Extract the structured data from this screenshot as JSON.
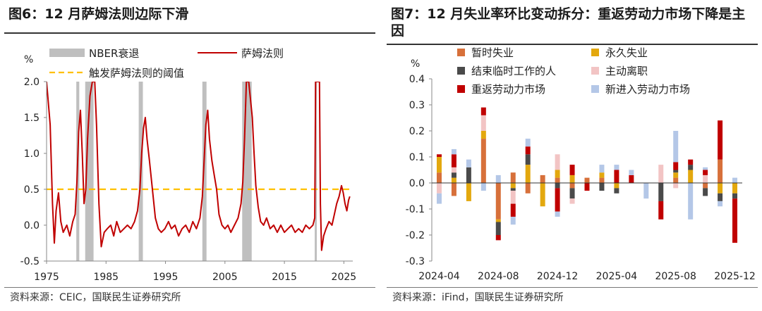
{
  "left_panel": {
    "title": "图6：12 月萨姆法则边际下滑",
    "source": "资料来源：CEIC，国联民生证券研究所"
  },
  "right_panel": {
    "title": "图7：12 月失业率环比变动拆分：重返劳动力市场下降是主因",
    "source": "资料来源：iFind，国联民生证券研究所"
  },
  "colors": {
    "sahm_line": "#C00000",
    "nber": "#BFBFBF",
    "threshold": "#FFC000",
    "temporary": "#D7703A",
    "permanent": "#E3A80E",
    "completed_temp": "#4A4A4A",
    "quits": "#F2C4C4",
    "reentrants": "#C00000",
    "new_entrants": "#B4C7E7"
  },
  "chart_data": [
    {
      "type": "line",
      "title": "12 月萨姆法则边际下滑",
      "ylabel": "%",
      "xlabel": "",
      "xlim": [
        1975,
        2026.5
      ],
      "ylim": [
        -0.5,
        2.0
      ],
      "xticks": [
        1975,
        1985,
        1995,
        2005,
        2015,
        2025
      ],
      "yticks": [
        2.0,
        1.5,
        1.0,
        0.5,
        0.0,
        -0.5
      ],
      "ytick_labels": [
        "2.0",
        "1.5",
        "1.0",
        "0.5",
        "0.0",
        "-0.5"
      ],
      "legend": [
        "NBER衰退",
        "萨姆法则",
        "触发萨姆法则的阈值"
      ],
      "threshold": 0.5,
      "recessions": [
        [
          1980.0,
          1980.5
        ],
        [
          1981.5,
          1982.9
        ],
        [
          1990.5,
          1991.2
        ],
        [
          2001.2,
          2001.9
        ],
        [
          2007.9,
          2009.5
        ],
        [
          2020.1,
          2020.3
        ]
      ],
      "series": [
        {
          "name": "萨姆法则",
          "points": [
            [
              1975.0,
              2.0
            ],
            [
              1975.6,
              1.4
            ],
            [
              1976.0,
              0.3
            ],
            [
              1976.3,
              -0.25
            ],
            [
              1976.6,
              0.2
            ],
            [
              1977.0,
              0.45
            ],
            [
              1977.4,
              0.05
            ],
            [
              1977.8,
              -0.1
            ],
            [
              1978.4,
              0.0
            ],
            [
              1978.9,
              -0.15
            ],
            [
              1979.4,
              0.05
            ],
            [
              1979.8,
              0.15
            ],
            [
              1980.1,
              0.6
            ],
            [
              1980.4,
              1.3
            ],
            [
              1980.7,
              1.6
            ],
            [
              1981.0,
              1.0
            ],
            [
              1981.3,
              0.3
            ],
            [
              1981.6,
              0.5
            ],
            [
              1981.9,
              1.2
            ],
            [
              1982.3,
              1.8
            ],
            [
              1982.7,
              2.0
            ],
            [
              1983.1,
              2.0
            ],
            [
              1983.4,
              1.4
            ],
            [
              1983.8,
              0.3
            ],
            [
              1984.2,
              -0.3
            ],
            [
              1984.7,
              -0.1
            ],
            [
              1985.2,
              -0.05
            ],
            [
              1985.8,
              0.0
            ],
            [
              1986.3,
              -0.15
            ],
            [
              1986.8,
              0.05
            ],
            [
              1987.4,
              -0.1
            ],
            [
              1988.0,
              -0.05
            ],
            [
              1988.6,
              0.0
            ],
            [
              1989.2,
              -0.05
            ],
            [
              1989.8,
              0.05
            ],
            [
              1990.3,
              0.2
            ],
            [
              1990.7,
              0.5
            ],
            [
              1991.0,
              1.0
            ],
            [
              1991.3,
              1.35
            ],
            [
              1991.6,
              1.5
            ],
            [
              1991.9,
              1.2
            ],
            [
              1992.3,
              0.9
            ],
            [
              1992.8,
              0.5
            ],
            [
              1993.3,
              0.1
            ],
            [
              1993.8,
              -0.05
            ],
            [
              1994.3,
              -0.1
            ],
            [
              1994.9,
              -0.05
            ],
            [
              1995.5,
              0.05
            ],
            [
              1996.0,
              -0.05
            ],
            [
              1996.6,
              0.0
            ],
            [
              1997.2,
              -0.15
            ],
            [
              1997.8,
              -0.05
            ],
            [
              1998.4,
              0.0
            ],
            [
              1999.0,
              -0.1
            ],
            [
              1999.6,
              0.05
            ],
            [
              2000.2,
              -0.05
            ],
            [
              2000.8,
              0.1
            ],
            [
              2001.2,
              0.4
            ],
            [
              2001.5,
              0.9
            ],
            [
              2001.8,
              1.4
            ],
            [
              2002.1,
              1.6
            ],
            [
              2002.4,
              1.2
            ],
            [
              2002.8,
              0.9
            ],
            [
              2003.2,
              0.7
            ],
            [
              2003.6,
              0.5
            ],
            [
              2004.0,
              0.15
            ],
            [
              2004.5,
              0.0
            ],
            [
              2005.0,
              -0.05
            ],
            [
              2005.5,
              0.0
            ],
            [
              2006.0,
              -0.1
            ],
            [
              2006.6,
              0.0
            ],
            [
              2007.2,
              0.1
            ],
            [
              2007.7,
              0.3
            ],
            [
              2008.0,
              0.6
            ],
            [
              2008.3,
              1.2
            ],
            [
              2008.6,
              2.0
            ],
            [
              2009.0,
              2.0
            ],
            [
              2009.6,
              1.5
            ],
            [
              2009.9,
              1.0
            ],
            [
              2010.2,
              0.55
            ],
            [
              2010.6,
              0.25
            ],
            [
              2011.0,
              0.05
            ],
            [
              2011.5,
              0.0
            ],
            [
              2012.0,
              0.1
            ],
            [
              2012.6,
              -0.05
            ],
            [
              2013.2,
              0.0
            ],
            [
              2013.8,
              -0.1
            ],
            [
              2014.4,
              0.0
            ],
            [
              2015.0,
              -0.1
            ],
            [
              2015.6,
              -0.05
            ],
            [
              2016.2,
              0.0
            ],
            [
              2016.8,
              -0.1
            ],
            [
              2017.4,
              -0.05
            ],
            [
              2018.0,
              -0.1
            ],
            [
              2018.6,
              0.0
            ],
            [
              2019.2,
              -0.05
            ],
            [
              2019.8,
              0.0
            ],
            [
              2020.1,
              0.1
            ],
            [
              2020.25,
              2.0
            ],
            [
              2020.9,
              2.0
            ],
            [
              2021.05,
              0.3
            ],
            [
              2021.25,
              -0.35
            ],
            [
              2021.6,
              -0.15
            ],
            [
              2022.0,
              -0.05
            ],
            [
              2022.5,
              0.05
            ],
            [
              2023.0,
              0.0
            ],
            [
              2023.4,
              0.15
            ],
            [
              2023.8,
              0.3
            ],
            [
              2024.2,
              0.4
            ],
            [
              2024.6,
              0.55
            ],
            [
              2024.9,
              0.45
            ],
            [
              2025.2,
              0.3
            ],
            [
              2025.5,
              0.2
            ],
            [
              2025.8,
              0.35
            ],
            [
              2026.0,
              0.4
            ]
          ]
        }
      ]
    },
    {
      "type": "bar",
      "stacked": true,
      "title": "12 月失业率环比变动拆分：重返劳动力市场下降是主因",
      "ylabel": "%",
      "xlabel": "",
      "ylim": [
        -0.3,
        0.4
      ],
      "yticks": [
        0.4,
        0.3,
        0.2,
        0.1,
        0.0,
        -0.1,
        -0.2,
        -0.3
      ],
      "ytick_labels": [
        "0.4",
        "0.3",
        "0.2",
        "0.1",
        "0.0",
        "-0.1",
        "-0.2",
        "-0.3"
      ],
      "categories": [
        "2024-04",
        "2024-05",
        "2024-06",
        "2024-07",
        "2024-08",
        "2024-09",
        "2024-10",
        "2024-11",
        "2024-12",
        "2025-01",
        "2025-02",
        "2025-03",
        "2025-04",
        "2025-05",
        "2025-06",
        "2025-07",
        "2025-08",
        "2025-09",
        "2025-10",
        "2025-11",
        "2025-12"
      ],
      "tick_labels": [
        "2024-04",
        "2024-08",
        "2024-12",
        "2025-04",
        "2025-08",
        "2025-12"
      ],
      "series": [
        {
          "name": "暂时失业",
          "values": [
            0.04,
            -0.05,
            0.0,
            0.17,
            -0.14,
            0.04,
            -0.04,
            0.03,
            0.02,
            -0.02,
            0.02,
            0.02,
            0.0,
            0.0,
            0.0,
            0.0,
            0.02,
            0.0,
            -0.02,
            0.09,
            0.0
          ]
        },
        {
          "name": "永久失业",
          "values": [
            0.06,
            0.02,
            -0.07,
            0.03,
            -0.01,
            -0.02,
            0.07,
            -0.09,
            0.03,
            0.03,
            0.0,
            0.02,
            -0.02,
            0.0,
            0.0,
            0.0,
            0.02,
            0.05,
            0.0,
            -0.04,
            -0.04
          ]
        },
        {
          "name": "结束临时工作的人",
          "values": [
            0.0,
            0.02,
            0.06,
            0.0,
            -0.05,
            -0.01,
            0.04,
            0.0,
            -0.02,
            -0.04,
            0.0,
            -0.03,
            -0.02,
            0.0,
            0.0,
            -0.07,
            0.01,
            0.02,
            -0.03,
            -0.03,
            -0.02
          ]
        },
        {
          "name": "主动离职",
          "values": [
            -0.04,
            0.02,
            0.0,
            0.06,
            0.0,
            -0.05,
            0.0,
            0.0,
            0.06,
            -0.02,
            0.0,
            0.0,
            0.0,
            0.0,
            0.0,
            0.07,
            -0.02,
            0.0,
            0.03,
            0.0,
            0.0
          ]
        },
        {
          "name": "重返劳动力市场",
          "values": [
            0.01,
            0.05,
            0.0,
            0.03,
            -0.02,
            -0.05,
            0.03,
            0.0,
            -0.09,
            0.04,
            -0.03,
            0.0,
            0.05,
            0.03,
            0.0,
            -0.07,
            0.03,
            0.02,
            0.02,
            0.15,
            -0.17
          ]
        },
        {
          "name": "新进入劳动力市场",
          "values": [
            -0.04,
            0.02,
            0.03,
            -0.03,
            0.03,
            -0.03,
            0.03,
            0.0,
            -0.02,
            0.0,
            0.0,
            0.03,
            0.02,
            0.02,
            -0.06,
            0.0,
            0.12,
            -0.14,
            0.01,
            -0.02,
            0.02
          ]
        }
      ]
    }
  ]
}
